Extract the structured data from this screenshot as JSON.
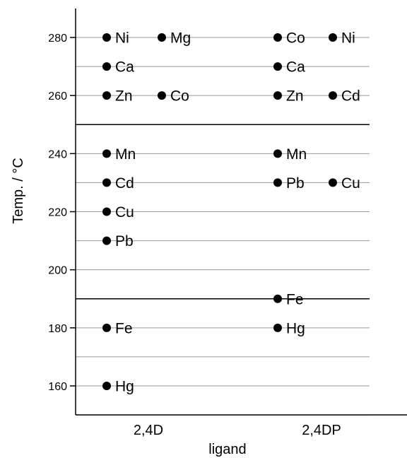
{
  "chart_data": {
    "type": "scatter",
    "title": "",
    "xlabel": "ligand",
    "ylabel": "Temp. / °C",
    "categories": [
      "2,4D",
      "2,4DP"
    ],
    "ylim": [
      150,
      290
    ],
    "yticks": [
      160,
      180,
      200,
      220,
      240,
      260,
      280
    ],
    "grid": "horizontal",
    "emphasized_lines": [
      190,
      250
    ],
    "legend": "none",
    "points": [
      {
        "x": "2,4D",
        "offset": 0,
        "y": 280,
        "label": "Ni"
      },
      {
        "x": "2,4D",
        "offset": 1,
        "y": 280,
        "label": "Mg"
      },
      {
        "x": "2,4D",
        "offset": 0,
        "y": 270,
        "label": "Ca"
      },
      {
        "x": "2,4D",
        "offset": 0,
        "y": 260,
        "label": "Zn"
      },
      {
        "x": "2,4D",
        "offset": 1,
        "y": 260,
        "label": "Co"
      },
      {
        "x": "2,4D",
        "offset": 0,
        "y": 240,
        "label": "Mn"
      },
      {
        "x": "2,4D",
        "offset": 0,
        "y": 230,
        "label": "Cd"
      },
      {
        "x": "2,4D",
        "offset": 0,
        "y": 220,
        "label": "Cu"
      },
      {
        "x": "2,4D",
        "offset": 0,
        "y": 210,
        "label": "Pb"
      },
      {
        "x": "2,4D",
        "offset": 0,
        "y": 180,
        "label": "Fe"
      },
      {
        "x": "2,4D",
        "offset": 0,
        "y": 160,
        "label": "Hg"
      },
      {
        "x": "2,4DP",
        "offset": 0,
        "y": 280,
        "label": "Co"
      },
      {
        "x": "2,4DP",
        "offset": 1,
        "y": 280,
        "label": "Ni"
      },
      {
        "x": "2,4DP",
        "offset": 0,
        "y": 270,
        "label": "Ca"
      },
      {
        "x": "2,4DP",
        "offset": 0,
        "y": 260,
        "label": "Zn"
      },
      {
        "x": "2,4DP",
        "offset": 1,
        "y": 260,
        "label": "Cd"
      },
      {
        "x": "2,4DP",
        "offset": 0,
        "y": 240,
        "label": "Mn"
      },
      {
        "x": "2,4DP",
        "offset": 0,
        "y": 230,
        "label": "Pb"
      },
      {
        "x": "2,4DP",
        "offset": 1,
        "y": 230,
        "label": "Cu"
      },
      {
        "x": "2,4DP",
        "offset": 0,
        "y": 190,
        "label": "Fe"
      },
      {
        "x": "2,4DP",
        "offset": 0,
        "y": 180,
        "label": "Hg"
      }
    ],
    "colors": {
      "marker": "#000000",
      "grid": "#999999",
      "axis": "#000000"
    }
  }
}
